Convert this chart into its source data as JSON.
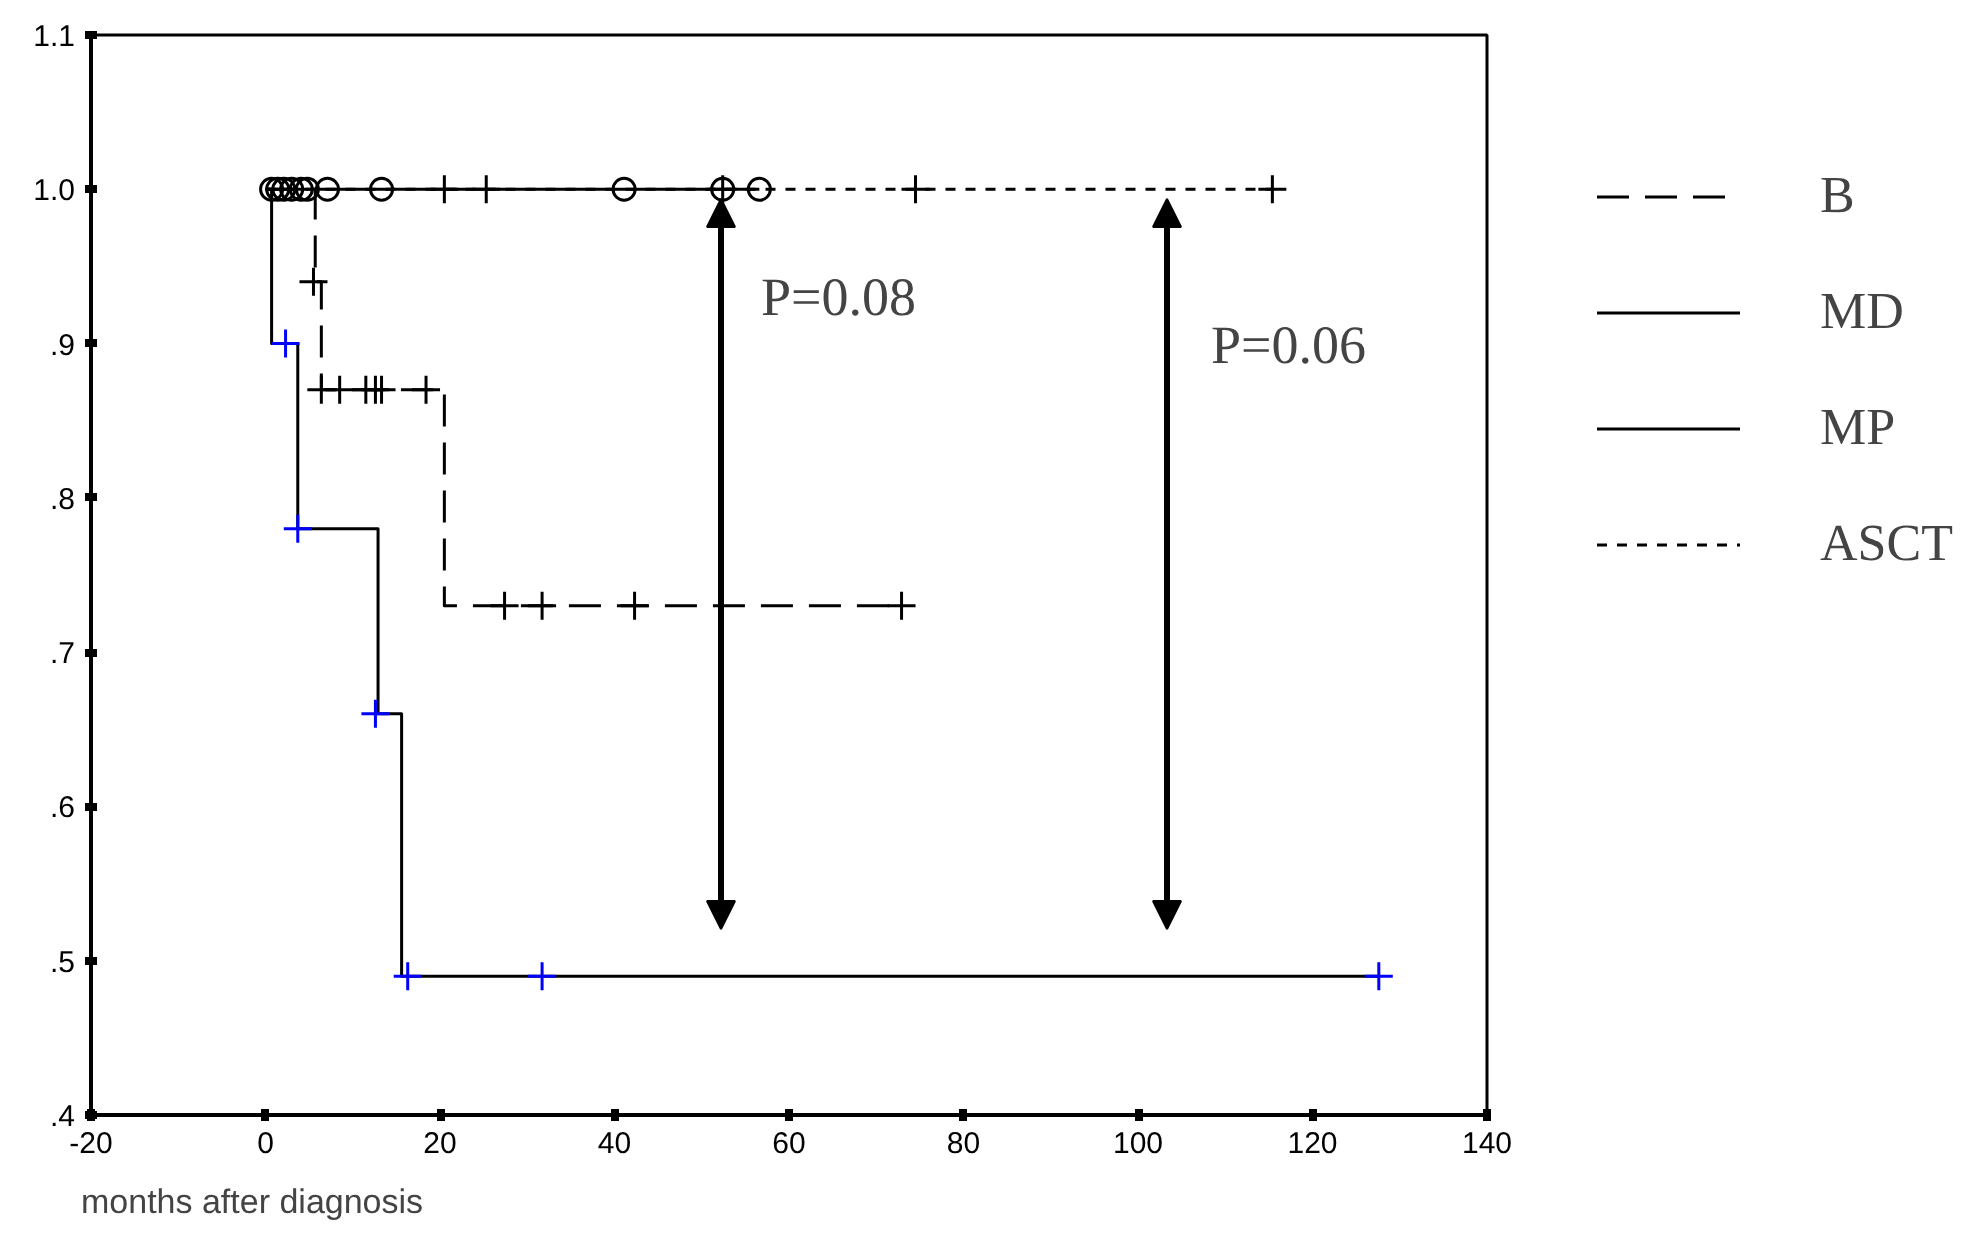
{
  "chart_data": {
    "type": "step",
    "xlabel": "months after diagnosis",
    "xlim": [
      -20,
      140
    ],
    "xticks": [
      -20,
      0,
      20,
      40,
      60,
      80,
      100,
      120,
      140
    ],
    "ylim": [
      0.4,
      1.1
    ],
    "yticks": [
      {
        "value": 0.4,
        "label": ".4"
      },
      {
        "value": 0.5,
        "label": ".5"
      },
      {
        "value": 0.6,
        "label": ".6"
      },
      {
        "value": 0.7,
        "label": ".7"
      },
      {
        "value": 0.8,
        "label": ".8"
      },
      {
        "value": 0.9,
        "label": ".9"
      },
      {
        "value": 1.0,
        "label": "1.0"
      },
      {
        "value": 1.1,
        "label": "1.1"
      }
    ],
    "grid": false,
    "legend": "right",
    "series": [
      {
        "name": "B",
        "color": "#000000",
        "line_style": "dashed",
        "x": [
          0,
          5.7,
          6.4,
          20.5,
          72.9
        ],
        "values": [
          1.0,
          0.94,
          0.87,
          0.73,
          0.73
        ]
      },
      {
        "type": "scatter",
        "marker": "cross",
        "color": "#000000",
        "x": [
          5.5,
          6.4,
          8.5,
          11.5,
          12.6,
          13.3,
          18.4,
          27.4,
          31.7,
          42.3,
          72.9
        ],
        "values": [
          0.94,
          0.87,
          0.87,
          0.87,
          0.87,
          0.87,
          0.87,
          0.73,
          0.73,
          0.73,
          0.73
        ]
      },
      {
        "name": "MD",
        "color": "#000000",
        "line_style": "solid",
        "x": [
          0,
          56.6
        ],
        "values": [
          1.0,
          1.0
        ]
      },
      {
        "type": "scatter",
        "marker": "circle",
        "color": "#000000",
        "x": [
          0.7,
          1.4,
          2.1,
          3.0,
          4.1,
          4.8,
          7.1,
          13.3,
          41.1,
          52.4,
          56.6
        ],
        "values": [
          1.0,
          1.0,
          1.0,
          1.0,
          1.0,
          1.0,
          1.0,
          1.0,
          1.0,
          1.0,
          1.0
        ]
      },
      {
        "name": "MP",
        "color": "#000000",
        "line_style": "solid",
        "x": [
          0,
          0.7,
          3.7,
          12.9,
          15.6,
          127.6
        ],
        "values": [
          1.0,
          0.9,
          0.78,
          0.66,
          0.49,
          0.49
        ]
      },
      {
        "type": "scatter",
        "marker": "cross",
        "color": "#0000ff",
        "x": [
          2.3,
          3.7,
          12.6,
          16.3,
          31.7,
          127.6
        ],
        "values": [
          0.9,
          0.78,
          0.66,
          0.49,
          0.49,
          0.49
        ]
      },
      {
        "name": "ASCT",
        "color": "#000000",
        "line_style": "dotted",
        "x": [
          0,
          115.4
        ],
        "values": [
          1.0,
          1.0
        ]
      },
      {
        "type": "scatter",
        "marker": "cross",
        "color": "#000000",
        "x": [
          20.5,
          25.3,
          52.4,
          74.5,
          115.4
        ],
        "values": [
          1.0,
          1.0,
          1.0,
          1.0,
          1.0
        ]
      }
    ],
    "annotations": [
      "P=0.08",
      "P=0.06"
    ]
  }
}
